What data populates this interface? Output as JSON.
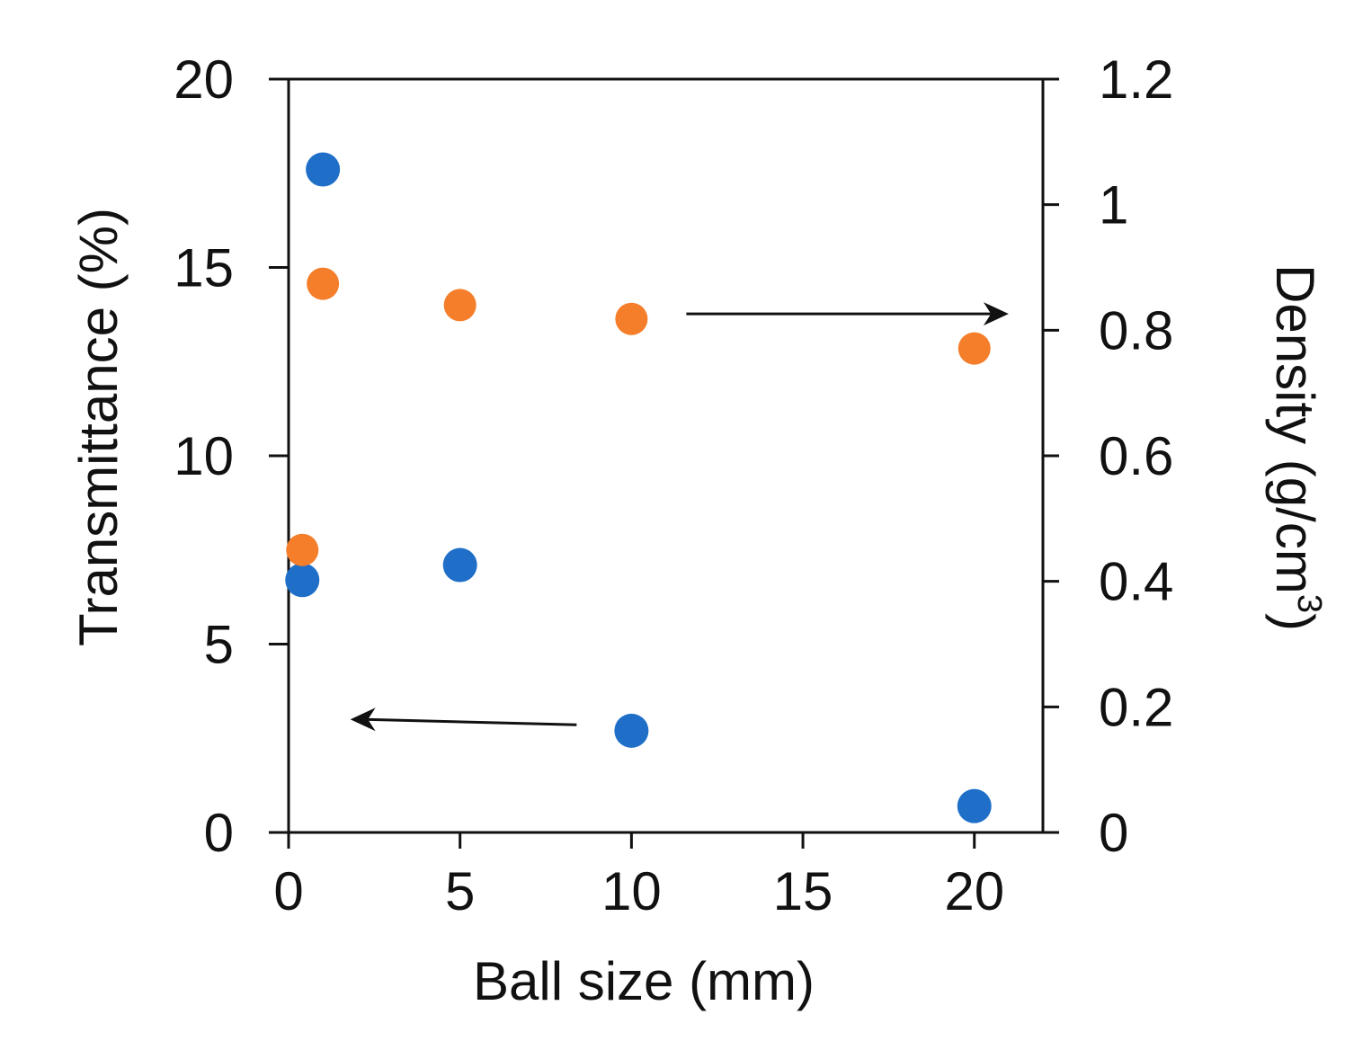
{
  "chart_data": {
    "type": "scatter",
    "title": "",
    "xlabel": "Ball size (mm)",
    "ylabel_left": "Transmittance (%)",
    "ylabel_right_prefix": "Density (g/cm",
    "ylabel_right_sup": "3",
    "ylabel_right_suffix": ")",
    "xlim": [
      0,
      22
    ],
    "ylim_left": [
      0,
      20
    ],
    "ylim_right": [
      0,
      1.2
    ],
    "x_ticks": [
      0,
      5,
      10,
      15,
      20
    ],
    "x_tick_labels": [
      "0",
      "5",
      "10",
      "15",
      "20"
    ],
    "y_left_ticks": [
      0,
      5,
      10,
      15,
      20
    ],
    "y_left_tick_labels": [
      "0",
      "5",
      "10",
      "15",
      "20"
    ],
    "y_right_ticks": [
      0,
      0.2,
      0.4,
      0.6,
      0.8,
      1.0,
      1.2
    ],
    "y_right_tick_labels": [
      "0",
      "0.2",
      "0.4",
      "0.6",
      "0.8",
      "1",
      "1.2"
    ],
    "grid": false,
    "legend": "none",
    "series": [
      {
        "axis": "left",
        "color": "#1f6fc9",
        "points": [
          {
            "x": 0.4,
            "y": 6.7
          },
          {
            "x": 1.0,
            "y": 17.6
          },
          {
            "x": 5.0,
            "y": 7.1
          },
          {
            "x": 10.0,
            "y": 2.7
          },
          {
            "x": 20.0,
            "y": 0.7
          }
        ]
      },
      {
        "axis": "right",
        "color": "#f57e2a",
        "points": [
          {
            "x": 0.4,
            "y": 0.45
          },
          {
            "x": 1.0,
            "y": 0.874
          },
          {
            "x": 5.0,
            "y": 0.84
          },
          {
            "x": 10.0,
            "y": 0.818
          },
          {
            "x": 20.0,
            "y": 0.771
          }
        ]
      }
    ],
    "annotations": [
      {
        "type": "arrow",
        "direction": "left",
        "axis": "left",
        "from_x": 8.4,
        "to_x": 1.8,
        "y": 3.0
      },
      {
        "type": "arrow",
        "direction": "right",
        "axis": "right",
        "from_x": 11.6,
        "to_x": 21.0,
        "y": 0.826
      }
    ]
  }
}
